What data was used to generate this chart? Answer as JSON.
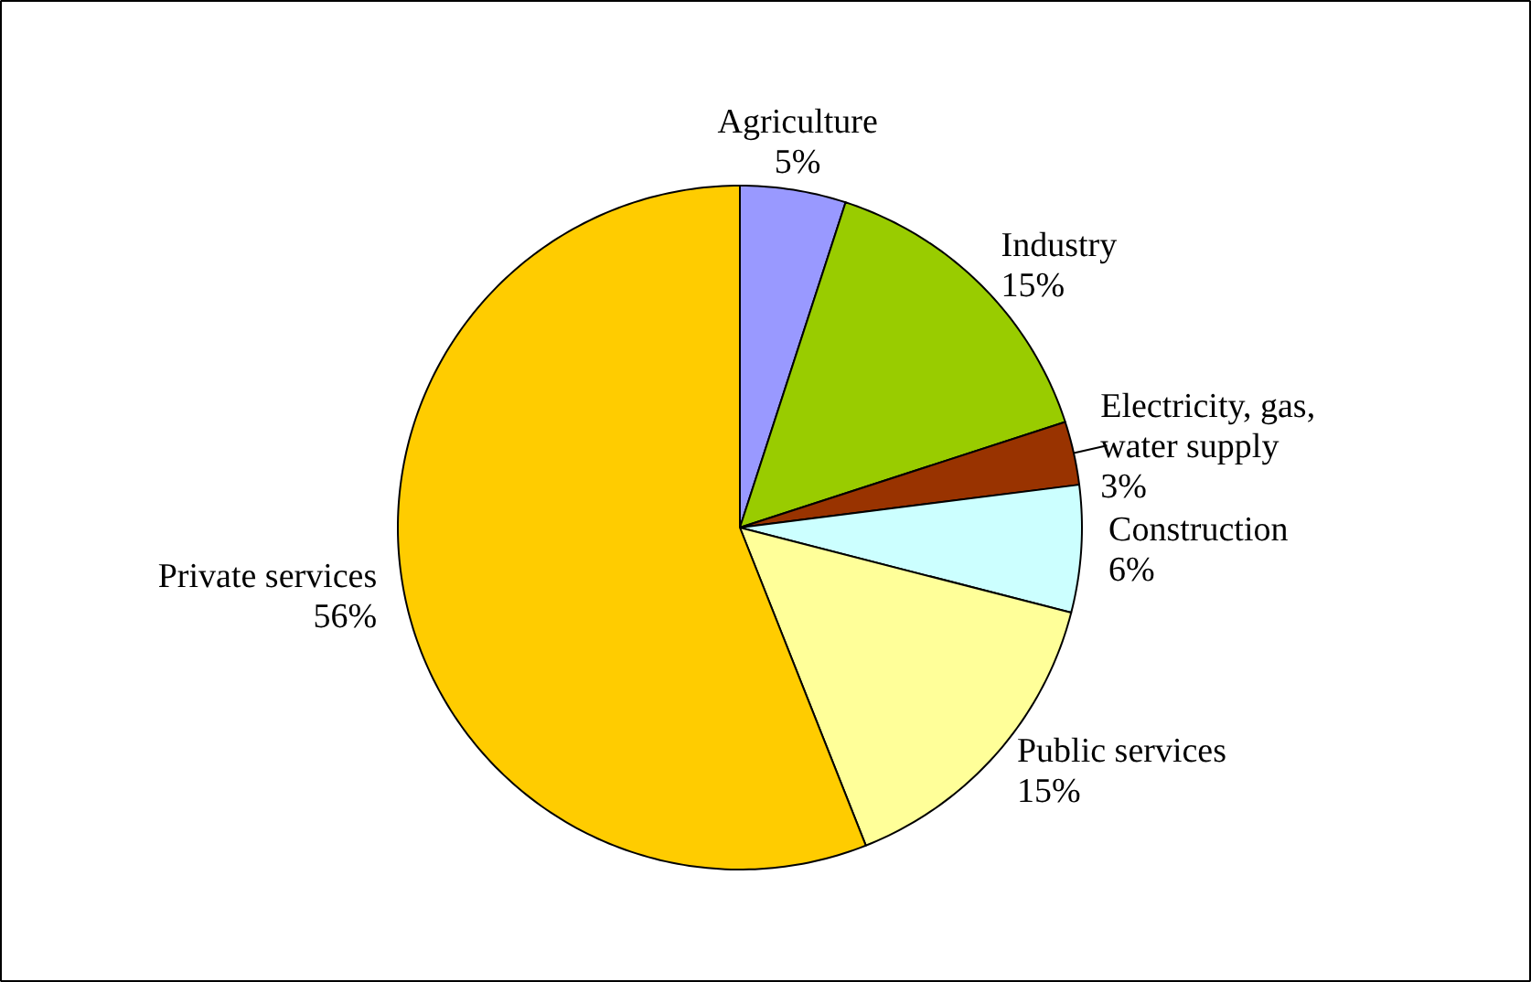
{
  "chart_data": {
    "type": "pie",
    "categories": [
      "Agriculture",
      "Industry",
      "Electricity, gas, water supply",
      "Construction",
      "Public services",
      "Private services"
    ],
    "values": [
      5,
      15,
      3,
      6,
      15,
      56
    ],
    "colors": [
      "#9999ff",
      "#99cc00",
      "#993300",
      "#ccffff",
      "#ffff99",
      "#ffcc00"
    ],
    "value_labels": [
      "5%",
      "15%",
      "3%",
      "6%",
      "15%",
      "56%"
    ]
  }
}
